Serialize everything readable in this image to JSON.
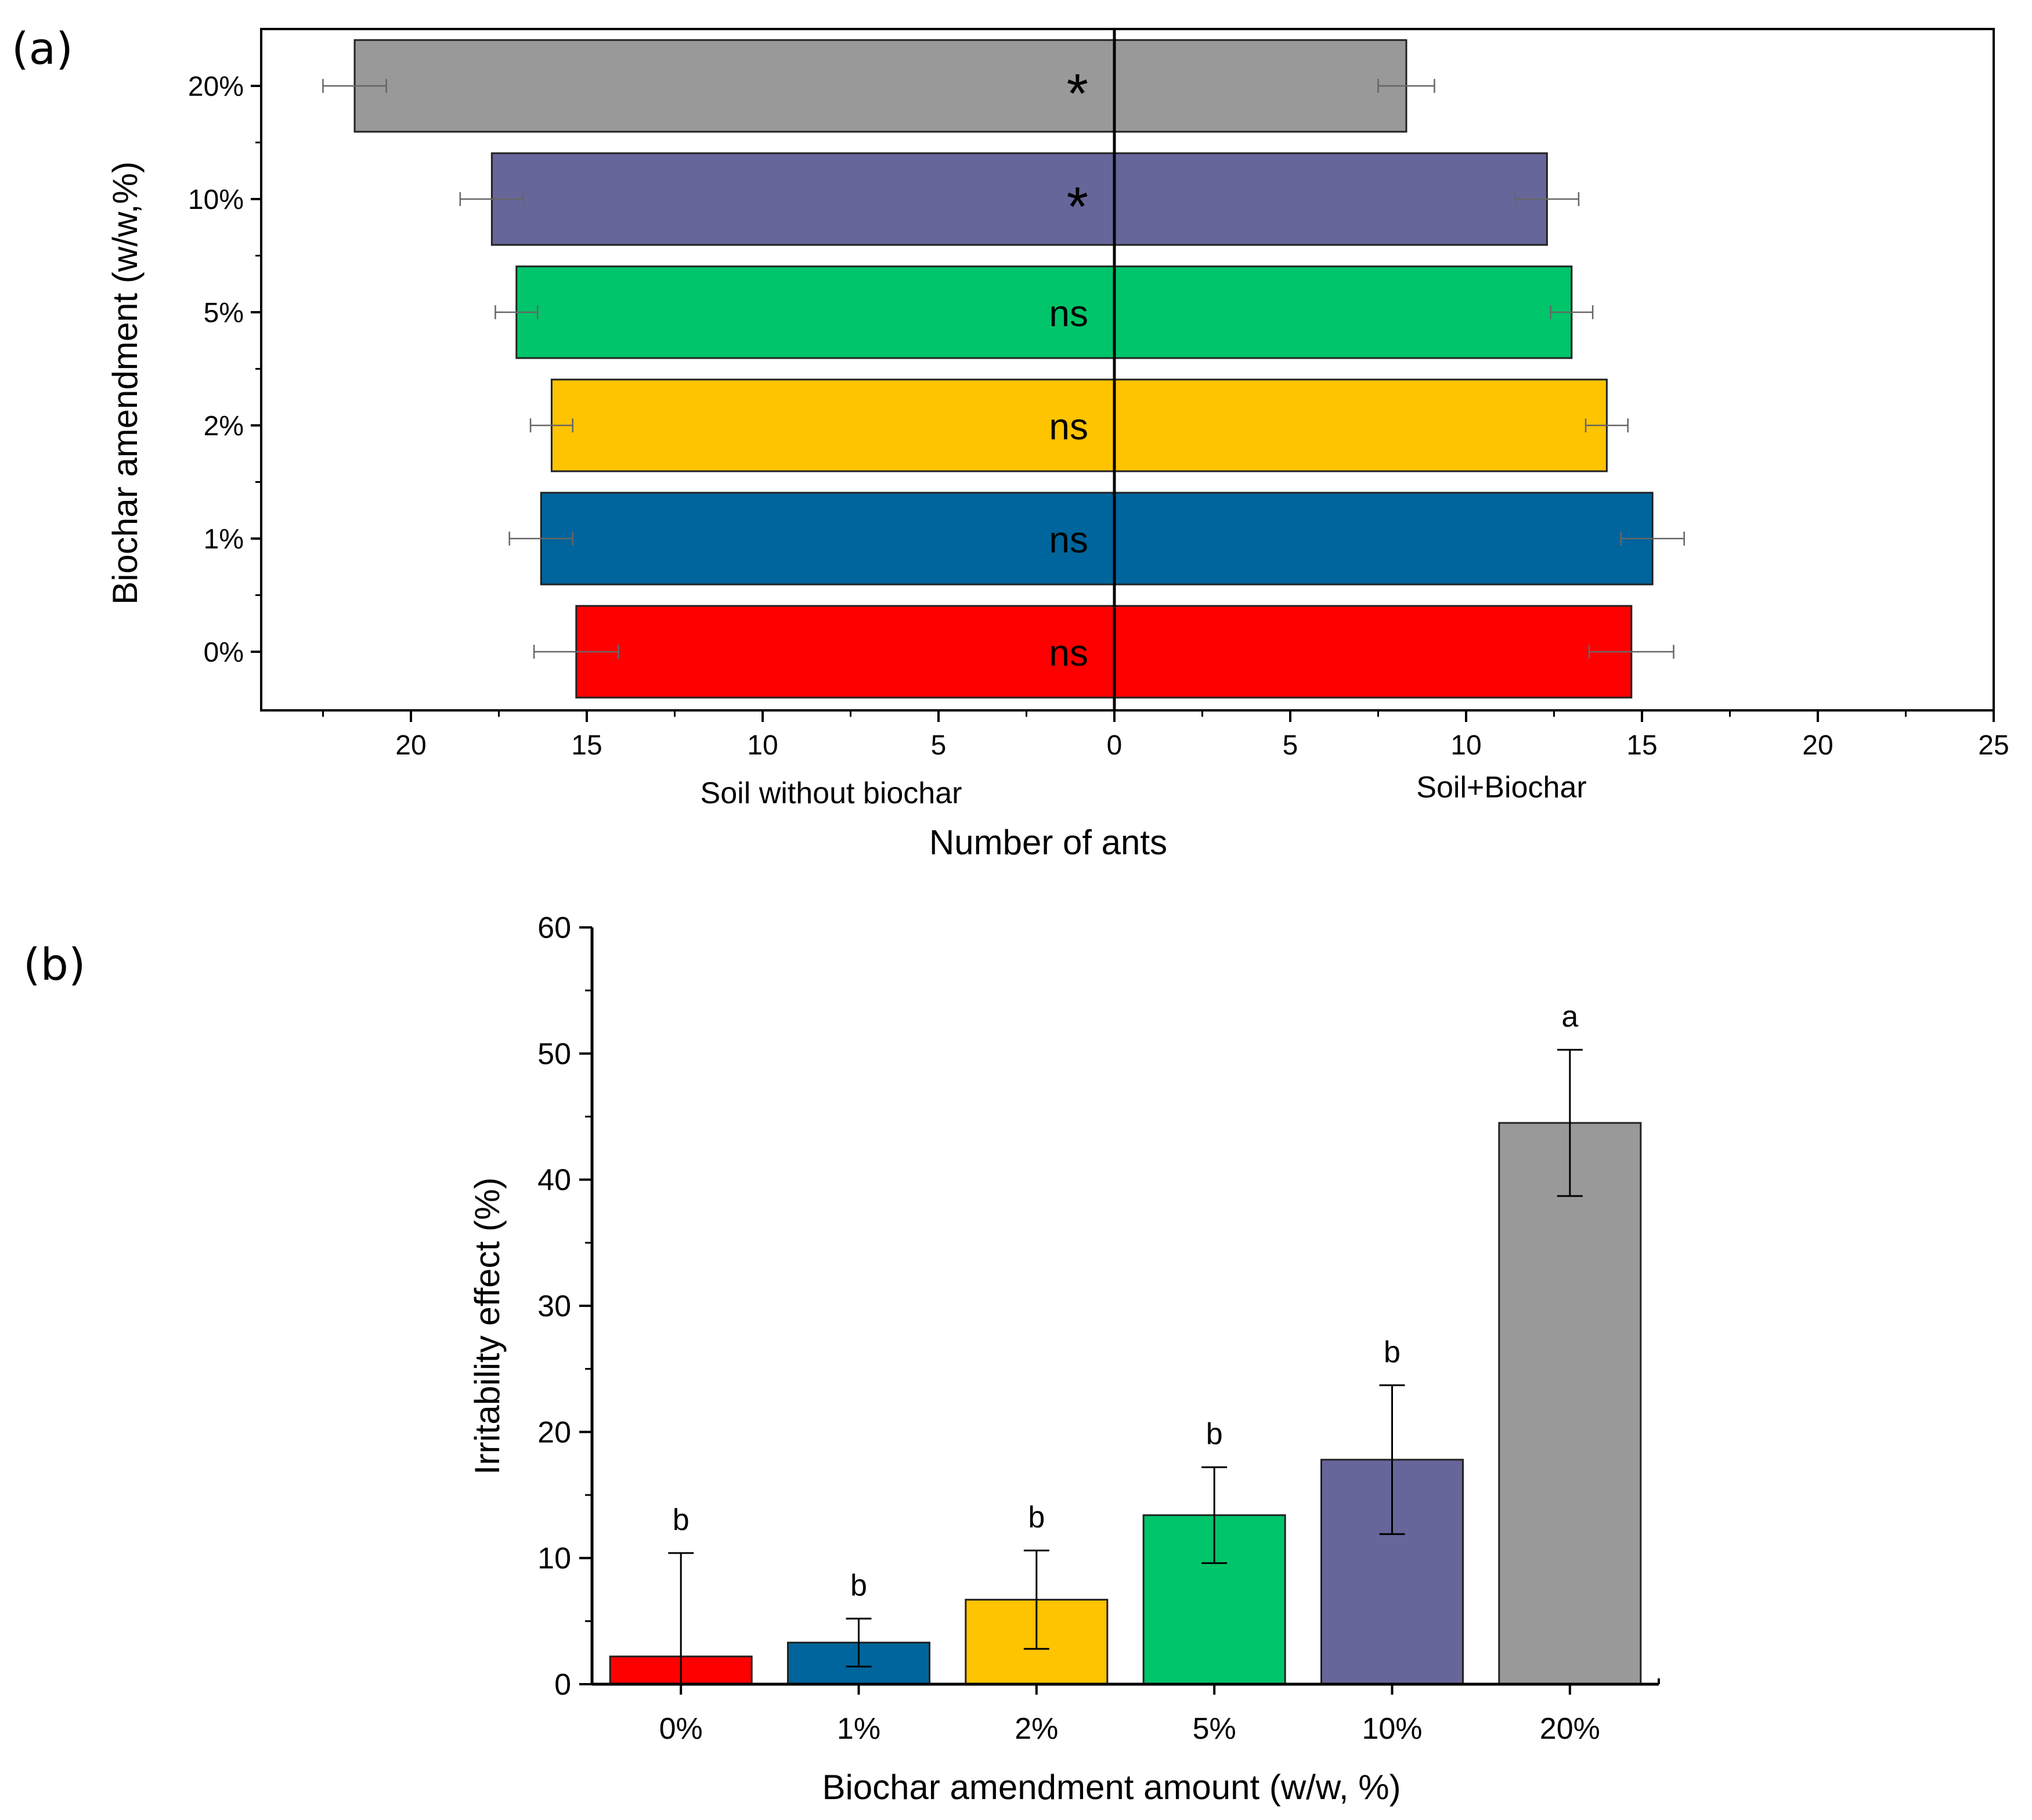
{
  "chart_data": [
    {
      "panel": "(a)",
      "type": "bar",
      "orientation": "horizontal",
      "categories": [
        "20%",
        "10%",
        "5%",
        "2%",
        "1%",
        "0%"
      ],
      "series": [
        {
          "name": "Soil without biochar",
          "values": [
            21.6,
            17.7,
            17.0,
            16.0,
            16.3,
            15.3
          ],
          "errors": [
            0.9,
            0.9,
            0.6,
            0.6,
            0.9,
            1.2
          ]
        },
        {
          "name": "Soil+Biochar",
          "values": [
            8.3,
            12.3,
            13.0,
            14.0,
            15.3,
            14.7
          ],
          "errors": [
            0.8,
            0.9,
            0.6,
            0.6,
            0.9,
            1.2
          ]
        }
      ],
      "colors": [
        "#999999",
        "#66669a",
        "#00c56a",
        "#ffc400",
        "#00659c",
        "#ff0000"
      ],
      "annotations": [
        "*",
        "*",
        "ns",
        "ns",
        "ns",
        "ns"
      ],
      "x_ticks_left": [
        "20",
        "15",
        "10",
        "5"
      ],
      "x_ticks_right": [
        "0",
        "5",
        "10",
        "15",
        "20",
        "25"
      ],
      "xlim_left": 25,
      "xlim_right": 25,
      "xlabel": "Number of ants",
      "ylabel": "Biochar amendment (w/w,%)"
    },
    {
      "panel": "(b)",
      "type": "bar",
      "categories": [
        "0%",
        "1%",
        "2%",
        "5%",
        "10%",
        "20%"
      ],
      "values": [
        2.2,
        3.3,
        6.7,
        13.4,
        17.8,
        44.5
      ],
      "errors": [
        8.2,
        1.9,
        3.9,
        3.8,
        5.9,
        5.8
      ],
      "colors": [
        "#ff0000",
        "#00659c",
        "#ffc400",
        "#00c56a",
        "#66669a",
        "#999999"
      ],
      "letters": [
        "b",
        "b",
        "b",
        "b",
        "b",
        "a"
      ],
      "y_ticks": [
        "0",
        "10",
        "20",
        "30",
        "40",
        "50",
        "60"
      ],
      "ylim": [
        0,
        60
      ],
      "xlabel": "Biochar amendment amount (w/w, %)",
      "ylabel": "Irritability  effect (%)"
    }
  ]
}
